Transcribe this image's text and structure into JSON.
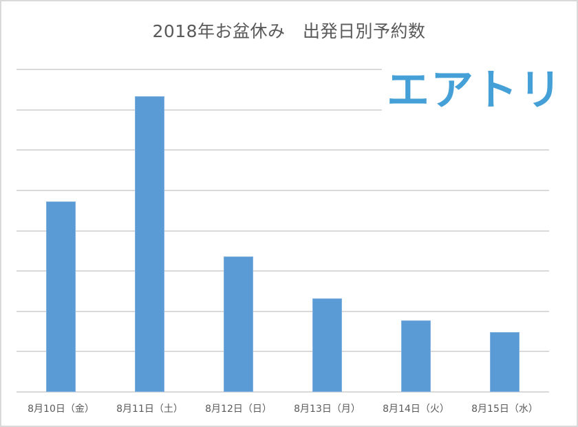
{
  "chart_data": {
    "type": "bar",
    "title": "2018年お盆休み　出発日別予約数",
    "categories": [
      "8月10日（金）",
      "8月11日（土）",
      "8月12日（日）",
      "8月13日（月）",
      "8月14日（火）",
      "8月15日（水）"
    ],
    "values": [
      4.73,
      7.34,
      3.36,
      2.32,
      1.77,
      1.48
    ],
    "value_unit_note": "relative gridline units (no y-axis tick labels shown)",
    "xlabel": "",
    "ylabel": "",
    "ylim": [
      0,
      8
    ],
    "grid": true,
    "gridlines": 8,
    "legend": null,
    "bar_color": "#5b9bd5"
  },
  "logo": {
    "text": "エアトリ",
    "color": "#45a0d7"
  },
  "colors": {
    "gridline": "#d9d9d9",
    "text": "#595959",
    "border": "#d9d9d9"
  }
}
